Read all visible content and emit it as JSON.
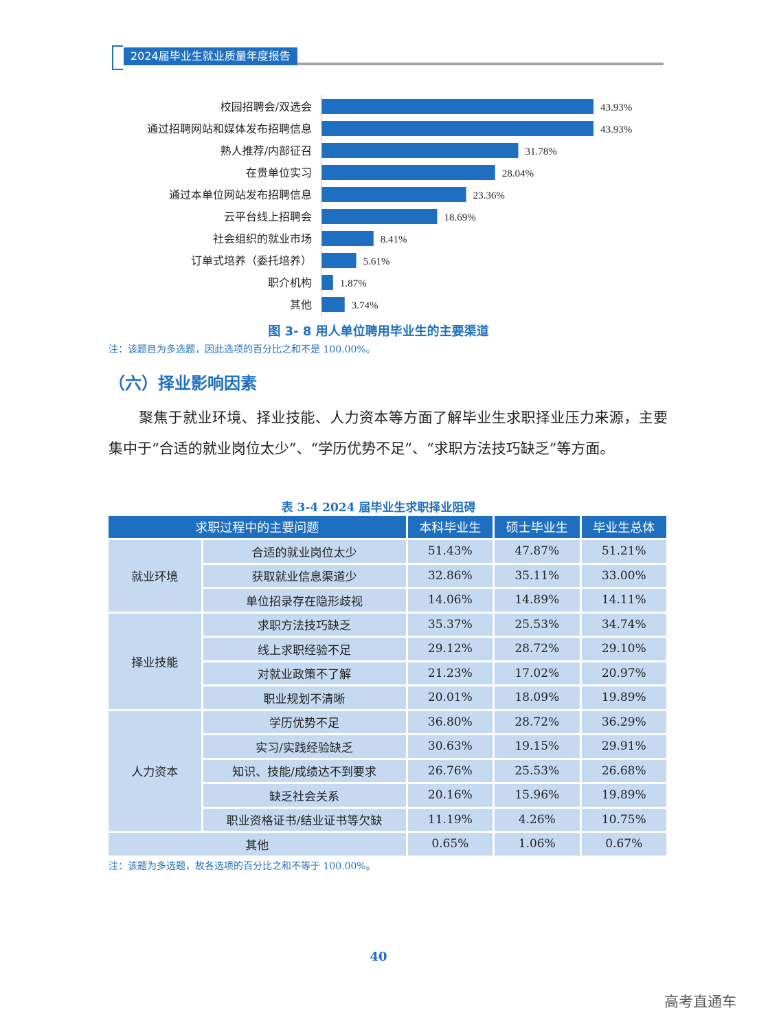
{
  "header": {
    "title": "2024届毕业生就业质量年度报告"
  },
  "chart_data": {
    "type": "bar",
    "orientation": "horizontal",
    "categories": [
      "校园招聘会/双选会",
      "通过招聘网站和媒体发布招聘信息",
      "熟人推荐/内部征召",
      "在贵单位实习",
      "通过本单位网站发布招聘信息",
      "云平台线上招聘会",
      "社会组织的就业市场",
      "订单式培养（委托培养）",
      "职介机构",
      "其他"
    ],
    "values": [
      43.93,
      43.93,
      31.78,
      28.04,
      23.36,
      18.69,
      8.41,
      5.61,
      1.87,
      3.74
    ],
    "value_labels": [
      "43.93%",
      "43.93%",
      "31.78%",
      "28.04%",
      "23.36%",
      "18.69%",
      "8.41%",
      "5.61%",
      "1.87%",
      "3.74%"
    ],
    "title": "图 3- 8  用人单位聘用毕业生的主要渠道",
    "xlim": [
      0,
      50
    ],
    "color": "#1f6fc0"
  },
  "chart_note": "注：该题目为多选题，因此选项的百分比之和不是 100.00%。",
  "section": {
    "title": "（六）择业影响因素",
    "paragraph": "聚焦于就业环境、择业技能、人力资本等方面了解毕业生求职择业压力来源，主要集中于“合适的就业岗位太少”、“学历优势不足”、“求职方法技巧缺乏”等方面。"
  },
  "table": {
    "caption": "表 3-4   2024 届毕业生求职择业阻碍",
    "headers": [
      "求职过程中的主要问题",
      "本科毕业生",
      "硕士毕业生",
      "毕业生总体"
    ],
    "groups": [
      {
        "name": "就业环境",
        "rows": [
          [
            "合适的就业岗位太少",
            "51.43%",
            "47.87%",
            "51.21%"
          ],
          [
            "获取就业信息渠道少",
            "32.86%",
            "35.11%",
            "33.00%"
          ],
          [
            "单位招录存在隐形歧视",
            "14.06%",
            "14.89%",
            "14.11%"
          ]
        ]
      },
      {
        "name": "择业技能",
        "rows": [
          [
            "求职方法技巧缺乏",
            "35.37%",
            "25.53%",
            "34.74%"
          ],
          [
            "线上求职经验不足",
            "29.12%",
            "28.72%",
            "29.10%"
          ],
          [
            "对就业政策不了解",
            "21.23%",
            "17.02%",
            "20.97%"
          ],
          [
            "职业规划不清晰",
            "20.01%",
            "18.09%",
            "19.89%"
          ]
        ]
      },
      {
        "name": "人力资本",
        "rows": [
          [
            "学历优势不足",
            "36.80%",
            "28.72%",
            "36.29%"
          ],
          [
            "实习/实践经验缺乏",
            "30.63%",
            "19.15%",
            "29.91%"
          ],
          [
            "知识、技能/成绩达不到要求",
            "26.76%",
            "25.53%",
            "26.68%"
          ],
          [
            "缺乏社会关系",
            "20.16%",
            "15.96%",
            "19.89%"
          ],
          [
            "职业资格证书/结业证书等欠缺",
            "11.19%",
            "4.26%",
            "10.75%"
          ]
        ]
      }
    ],
    "other_row": [
      "其他",
      "0.65%",
      "1.06%",
      "0.67%"
    ]
  },
  "table_note": "注：该题为多选题，故各选项的百分比之和不等于 100.00%。",
  "page_number": "40",
  "watermark": "高考直通车"
}
